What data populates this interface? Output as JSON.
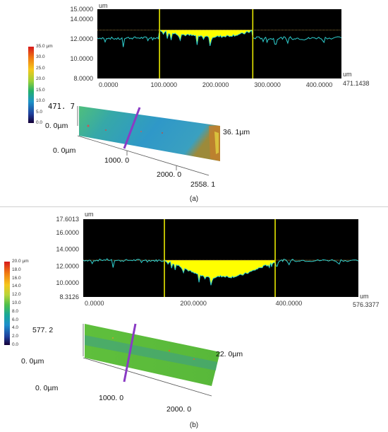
{
  "panels": [
    {
      "caption": "(a)",
      "profile": {
        "unit_y": "um",
        "unit_x": "um",
        "y_ticks": [
          "15.0000",
          "14.0000",
          "12.0000",
          "10.0000",
          "8.0000"
        ],
        "x_ticks": [
          "0.0000",
          "100.0000",
          "200.0000",
          "300.0000",
          "400.0000"
        ],
        "x_max_label": "471.1438"
      },
      "colorbar": {
        "ticks": [
          "35.0 µm",
          "30.0",
          "25.0",
          "20.0",
          "15.0",
          "10.0",
          "5.0",
          "0.0"
        ]
      },
      "surface3d": {
        "y_extent": "471. 7",
        "z_min": "0. 0µm",
        "z_max": "36. 1µm",
        "x_origin": "0. 0µm",
        "x_ticks": [
          "1000. 0",
          "2000. 0"
        ],
        "x_end": "2558. 1"
      }
    },
    {
      "caption": "(b)",
      "profile": {
        "unit_y": "um",
        "unit_x": "um",
        "y_ticks": [
          "17.6013",
          "16.0000",
          "14.0000",
          "12.0000",
          "10.0000",
          "8.3126"
        ],
        "x_ticks": [
          "0.0000",
          "200.0000",
          "400.0000"
        ],
        "x_max_label": "576.3377"
      },
      "colorbar": {
        "ticks": [
          "20.0 µm",
          "18.0",
          "16.0",
          "14.0",
          "12.0",
          "10.0",
          "8.0",
          "6.0",
          "4.0",
          "2.0",
          "0.0"
        ]
      },
      "surface3d": {
        "y_extent": "577. 2",
        "z_min": "0. 0µm",
        "z_max": "22. 0µm",
        "x_origin": "0. 0µm",
        "x_ticks": [
          "1000. 0",
          "2000. 0"
        ]
      }
    }
  ],
  "chart_data": [
    {
      "type": "line",
      "series": [
        {
          "values": [
            [
              0,
              12.1
            ],
            [
              20,
              12.1
            ],
            [
              40,
              12.0
            ],
            [
              60,
              12.1
            ],
            [
              80,
              12.1
            ],
            [
              100,
              12.1
            ],
            [
              118,
              12.1
            ],
            [
              120,
              12.9
            ],
            [
              140,
              12.6
            ],
            [
              160,
              12.45
            ],
            [
              180,
              12.35
            ],
            [
              200,
              12.25
            ],
            [
              220,
              12.2
            ],
            [
              240,
              12.25
            ],
            [
              260,
              12.35
            ],
            [
              280,
              12.5
            ],
            [
              298,
              12.8
            ],
            [
              300,
              12.1
            ],
            [
              320,
              12.1
            ],
            [
              340,
              12.0
            ],
            [
              360,
              12.1
            ],
            [
              380,
              12.1
            ],
            [
              400,
              12.0
            ],
            [
              420,
              12.1
            ],
            [
              440,
              12.1
            ],
            [
              471.1438,
              12.1
            ]
          ]
        }
      ],
      "reference_level": 12.9,
      "cursors_x": [
        120,
        300
      ],
      "xlim": [
        0,
        471.1438
      ],
      "ylim": [
        8.0,
        15.0
      ],
      "colors": {
        "profile": "#2fd0d0",
        "fill": "#ffff00",
        "cursor": "#e8e800",
        "background": "#000000"
      }
    },
    {
      "type": "line",
      "series": [
        {
          "values": [
            [
              0,
              12.7
            ],
            [
              25,
              12.7
            ],
            [
              50,
              12.75
            ],
            [
              75,
              12.65
            ],
            [
              100,
              12.7
            ],
            [
              125,
              12.7
            ],
            [
              150,
              12.65
            ],
            [
              170,
              12.7
            ],
            [
              190,
              12.3
            ],
            [
              210,
              11.8
            ],
            [
              230,
              11.2
            ],
            [
              250,
              10.8
            ],
            [
              270,
              10.6
            ],
            [
              290,
              10.8
            ],
            [
              310,
              10.7
            ],
            [
              330,
              10.9
            ],
            [
              350,
              11.3
            ],
            [
              370,
              11.8
            ],
            [
              390,
              12.2
            ],
            [
              402,
              12.5
            ],
            [
              420,
              12.7
            ],
            [
              450,
              12.7
            ],
            [
              480,
              12.65
            ],
            [
              510,
              12.7
            ],
            [
              540,
              12.7
            ],
            [
              576.3377,
              12.6
            ]
          ]
        }
      ],
      "reference_level": 12.7,
      "cursors_x": [
        170,
        402
      ],
      "xlim": [
        0,
        576.3377
      ],
      "ylim": [
        8.3126,
        17.6013
      ],
      "colors": {
        "profile": "#2fd0d0",
        "fill": "#ffff00",
        "cursor": "#e8e800",
        "background": "#000000"
      }
    }
  ]
}
